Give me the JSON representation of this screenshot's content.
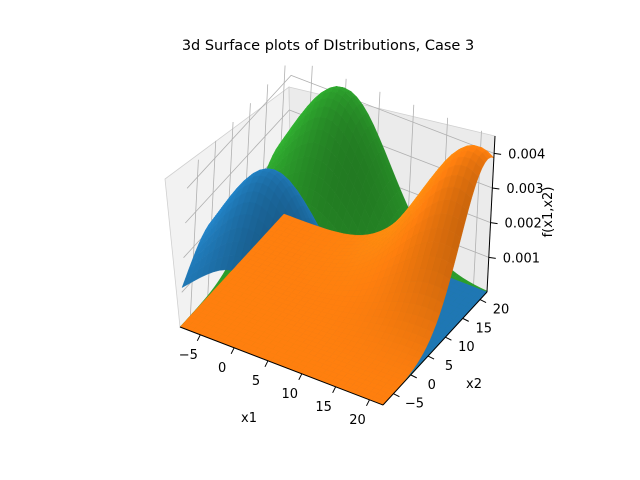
{
  "chart_data": {
    "type": "surface3d",
    "title": "3d Surface plots of DIstributions, Case 3",
    "xlabel": "x1",
    "ylabel": "x2",
    "zlabel": "f(x1,x2)",
    "x_ticks": [
      "−5",
      "0",
      "5",
      "10",
      "15",
      "20"
    ],
    "y_ticks": [
      "−5",
      "0",
      "5",
      "10",
      "15",
      "20"
    ],
    "z_ticks": [
      "0.001",
      "0.002",
      "0.003",
      "0.004"
    ],
    "xlim": [
      -8,
      22
    ],
    "ylim": [
      -8,
      22
    ],
    "zlim": [
      0,
      0.0045
    ],
    "grid": true,
    "series": [
      {
        "color": "#2ca02c",
        "mean": [
          0,
          20
        ],
        "peak": 0.0044
      },
      {
        "color": "#1f77b4",
        "mean": [
          0,
          0
        ],
        "peak": 0.0042
      },
      {
        "color": "#ff7f0e",
        "mean": [
          20,
          20
        ],
        "peak": 0.0042
      }
    ]
  }
}
